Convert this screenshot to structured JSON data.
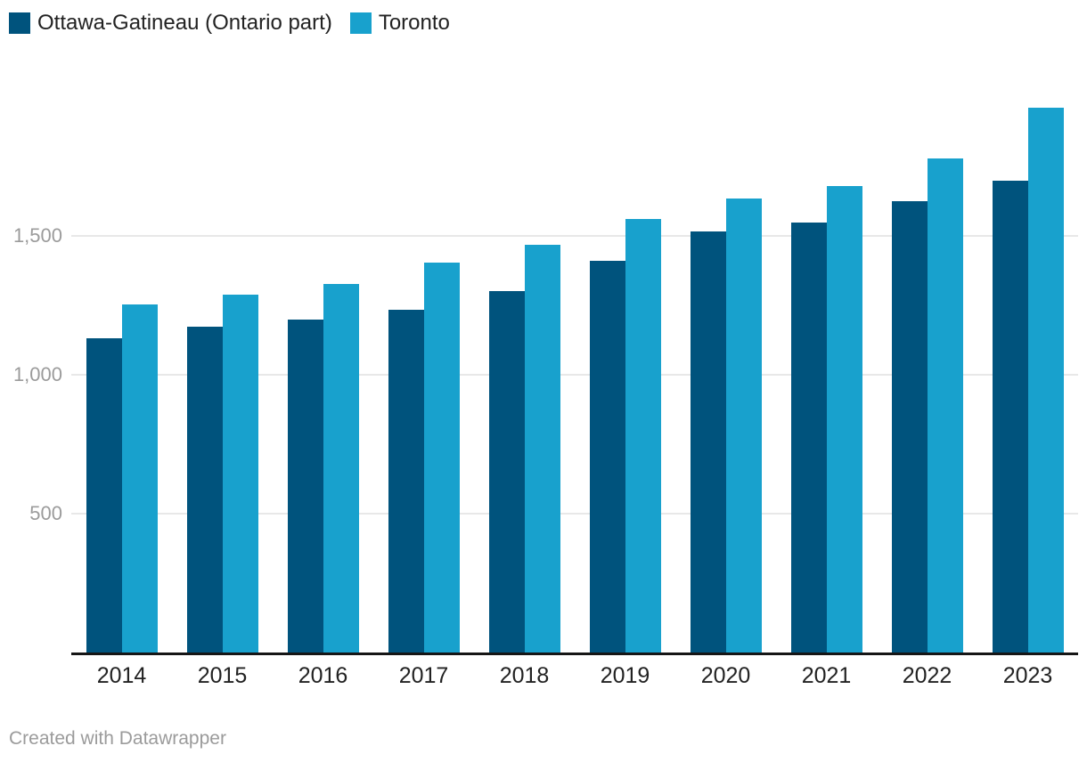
{
  "legend": {
    "items": [
      {
        "label": "Ottawa-Gatineau (Ontario part)",
        "color": "#00537d"
      },
      {
        "label": "Toronto",
        "color": "#18a1cd"
      }
    ]
  },
  "chart_data": {
    "type": "bar",
    "subtype": "grouped-vertical",
    "categories": [
      "2014",
      "2015",
      "2016",
      "2017",
      "2018",
      "2019",
      "2020",
      "2021",
      "2022",
      "2023"
    ],
    "series": [
      {
        "name": "Ottawa-Gatineau (Ontario part)",
        "color": "#00537d",
        "values": [
          1132,
          1174,
          1199,
          1233,
          1301,
          1410,
          1517,
          1547,
          1625,
          1698
        ]
      },
      {
        "name": "Toronto",
        "color": "#18a1cd",
        "values": [
          1252,
          1288,
          1327,
          1404,
          1467,
          1562,
          1635,
          1678,
          1779,
          1961
        ]
      }
    ],
    "title": "",
    "xlabel": "",
    "ylabel": "",
    "ylim": [
      0,
      2060
    ],
    "y_ticks": [
      {
        "value": 500,
        "label": "500"
      },
      {
        "value": 1000,
        "label": "1,000"
      },
      {
        "value": 1500,
        "label": "1,500"
      }
    ],
    "grid": "horizontal-only",
    "legend_position": "top-left",
    "colors": {
      "gridline": "#e8e8e8",
      "axis_line": "#161616",
      "y_tick_text": "#9b9b9b",
      "x_tick_text": "#222222"
    }
  },
  "footer": {
    "credit": "Created with Datawrapper"
  }
}
